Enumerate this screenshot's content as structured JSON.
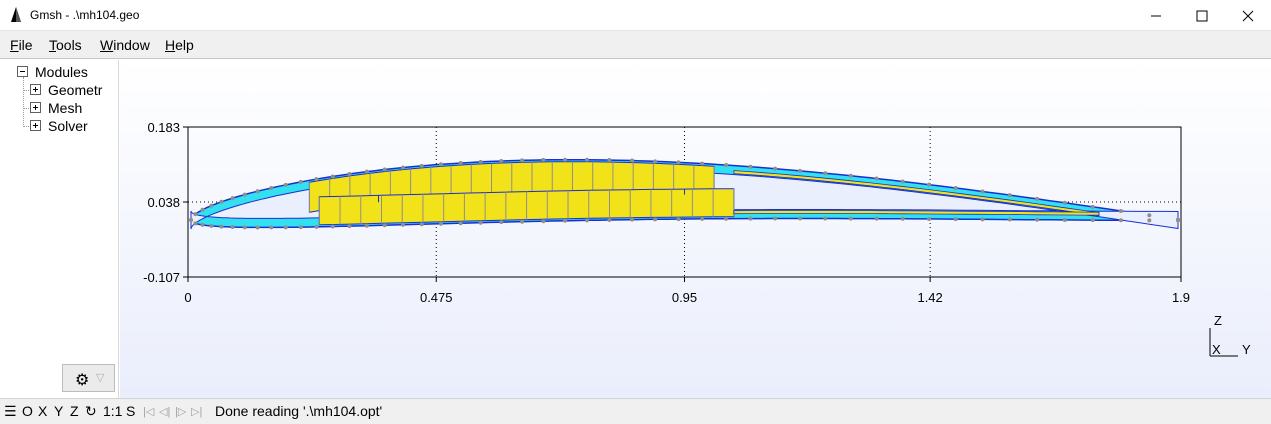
{
  "window": {
    "title": "Gmsh - .\\mh104.geo"
  },
  "menu": {
    "items": [
      {
        "underline": "F",
        "rest": "ile"
      },
      {
        "underline": "T",
        "rest": "ools"
      },
      {
        "underline": "W",
        "rest": "indow"
      },
      {
        "underline": "H",
        "rest": "elp"
      }
    ]
  },
  "tree": {
    "root": "Modules",
    "children": [
      "Geometr",
      "Mesh",
      "Solver"
    ]
  },
  "plot": {
    "y_ticks": [
      "0.183",
      "0.038",
      "-0.107"
    ],
    "x_ticks": [
      "0",
      "0.475",
      "0.95",
      "1.42",
      "1.9"
    ],
    "axes": {
      "z": "Z",
      "x": "X",
      "y": "Y"
    }
  },
  "chart_data": {
    "type": "line",
    "title": "",
    "x_ticks": [
      0,
      0.475,
      0.95,
      1.42,
      1.9
    ],
    "y_ticks": [
      -0.107,
      0.038,
      0.183
    ],
    "xlim": [
      0,
      1.9
    ],
    "ylim": [
      -0.107,
      0.183
    ]
  },
  "status": {
    "buttons": [
      "☰",
      "O",
      "X",
      "Y",
      "Z",
      "↻",
      "1:1",
      "S"
    ],
    "nav": [
      "|◁",
      "◁|",
      "|▷",
      "▷|"
    ],
    "message": "Done reading '.\\mh104.opt'"
  },
  "colors": {
    "cyan": "#33e0f0",
    "yellow": "#f2e21a",
    "outline": "#1a2fd0",
    "node": "#8f8f8f"
  }
}
